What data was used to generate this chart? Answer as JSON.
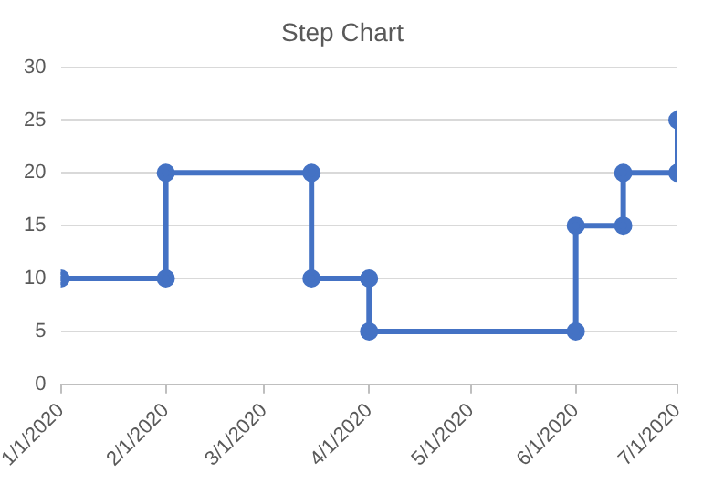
{
  "chart_data": {
    "type": "line",
    "title": "Step Chart",
    "x": [
      "2020-01-01",
      "2020-02-01",
      "2020-02-01",
      "2020-03-15",
      "2020-03-15",
      "2020-04-01",
      "2020-04-01",
      "2020-06-01",
      "2020-06-01",
      "2020-06-15",
      "2020-06-15",
      "2020-07-01",
      "2020-07-01"
    ],
    "values": [
      10,
      10,
      20,
      20,
      10,
      10,
      5,
      5,
      15,
      15,
      20,
      20,
      25
    ],
    "color": "#4472c4",
    "xlim": [
      "2020-01-01",
      "2020-07-01"
    ],
    "xticks": [
      {
        "value": "2020-01-01",
        "label": "1/1/2020"
      },
      {
        "value": "2020-02-01",
        "label": "2/1/2020"
      },
      {
        "value": "2020-03-01",
        "label": "3/1/2020"
      },
      {
        "value": "2020-04-01",
        "label": "4/1/2020"
      },
      {
        "value": "2020-05-01",
        "label": "5/1/2020"
      },
      {
        "value": "2020-06-01",
        "label": "6/1/2020"
      },
      {
        "value": "2020-07-01",
        "label": "7/1/2020"
      }
    ],
    "ylim": [
      0,
      30
    ],
    "yticks": [
      0,
      5,
      10,
      15,
      20,
      25,
      30
    ],
    "grid": "y",
    "marker": "circle",
    "line_style": "solid",
    "legend": false
  }
}
